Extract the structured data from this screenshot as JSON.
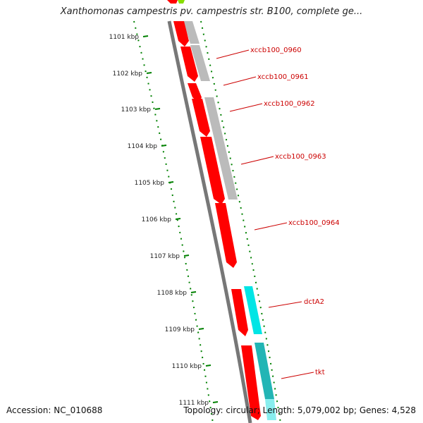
{
  "title": "Xanthomonas campestris pv. campestris str. B100, complete ge...",
  "footer": {
    "accession": "Accession: NC_010688",
    "summary": "Topology: circular; Length: 5,079,002 bp; Genes: 4,528"
  },
  "colors": {
    "backbone": "#777777",
    "forward_gene": "#ff0000",
    "cog_gray": "#bbbbbb",
    "cog_cyan": "#00e5e5",
    "cog_teal": "#22b5b5",
    "scale_ticks": "#008000",
    "label": "#cc0000",
    "top_feature": "#88dd00"
  },
  "scale": {
    "ticks": [
      {
        "label": "1101 kbp"
      },
      {
        "label": "1102 kbp"
      },
      {
        "label": "1103 kbp"
      },
      {
        "label": "1104 kbp"
      },
      {
        "label": "1105 kbp"
      },
      {
        "label": "1106 kbp"
      },
      {
        "label": "1107 kbp"
      },
      {
        "label": "1108 kbp"
      },
      {
        "label": "1109 kbp"
      },
      {
        "label": "1110 kbp"
      },
      {
        "label": "1111 kbp"
      }
    ]
  },
  "genes": [
    {
      "label": "xccb100_0960"
    },
    {
      "label": "xccb100_0961"
    },
    {
      "label": "xccb100_0962"
    },
    {
      "label": "xccb100_0963"
    },
    {
      "label": "xccb100_0964"
    },
    {
      "label": "dctA2"
    },
    {
      "label": "tkt"
    }
  ]
}
